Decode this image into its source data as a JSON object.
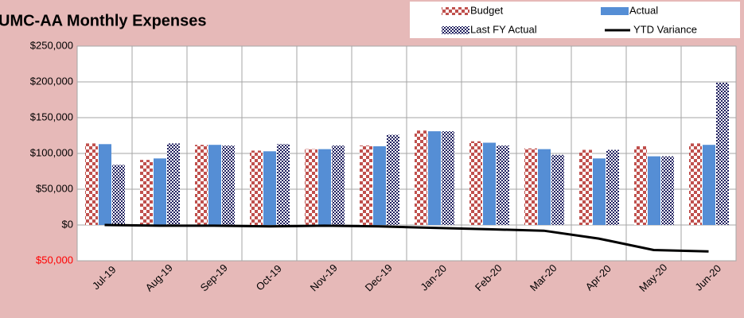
{
  "chart_data": {
    "type": "bar",
    "title": "UMC-AA Monthly Expenses",
    "categories": [
      "Jul-19",
      "Aug-19",
      "Sep-19",
      "Oct-19",
      "Nov-19",
      "Dec-19",
      "Jan-20",
      "Feb-20",
      "Mar-20",
      "Apr-20",
      "May-20",
      "Jun-20"
    ],
    "series": [
      {
        "name": "Budget",
        "color": "#c0504d",
        "values": [
          114000,
          91000,
          112000,
          104000,
          106000,
          111000,
          132000,
          117000,
          107000,
          105000,
          110000,
          114000
        ]
      },
      {
        "name": "Actual",
        "color": "#558ed5",
        "values": [
          113000,
          93000,
          112000,
          103000,
          106000,
          110000,
          131000,
          115000,
          106000,
          93000,
          96000,
          112000
        ]
      },
      {
        "name": "Last FY Actual",
        "color": "#1f1f5f",
        "values": [
          84000,
          114000,
          111000,
          113000,
          111000,
          126000,
          131000,
          111000,
          98000,
          105000,
          96000,
          199000
        ]
      },
      {
        "name": "YTD Variance",
        "color": "#000000",
        "type": "line",
        "values": [
          0,
          -1000,
          -1000,
          -2000,
          -1000,
          -2000,
          -4000,
          -6000,
          -8000,
          -19000,
          -35000,
          -37000
        ]
      }
    ],
    "ylim": [
      -50000,
      250000
    ],
    "yticks": [
      {
        "value": -50000,
        "label": "$50,000",
        "color": "#ff0000"
      },
      {
        "value": 0,
        "label": "$0"
      },
      {
        "value": 50000,
        "label": "$50,000"
      },
      {
        "value": 100000,
        "label": "$100,000"
      },
      {
        "value": 150000,
        "label": "$150,000"
      },
      {
        "value": 200000,
        "label": "$200,000"
      },
      {
        "value": 250000,
        "label": "$250,000"
      }
    ],
    "grid": true,
    "legend": "top-right"
  }
}
